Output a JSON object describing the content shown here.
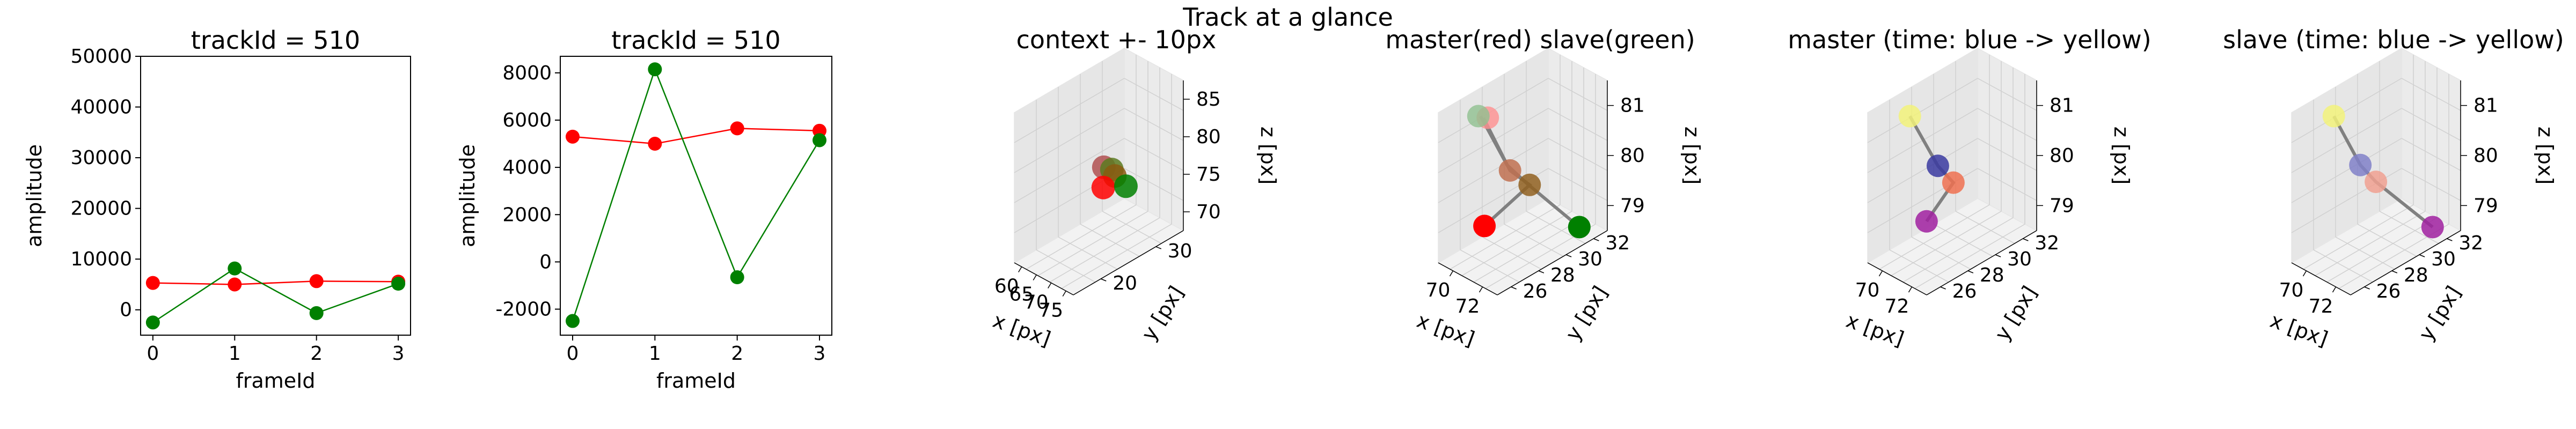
{
  "suptitle": "Track at a glance",
  "colors": {
    "master": "#ff0000",
    "slave": "#008000",
    "link": "#808080",
    "time_start": "#440154",
    "time_end": "#fde725"
  },
  "chart_data": [
    {
      "type": "line",
      "title": "trackId = 510",
      "xlabel": "frameId",
      "ylabel": "amplitude",
      "xlim": [
        -0.15,
        3.15
      ],
      "ylim": [
        -5000,
        50000
      ],
      "xticks": [
        0,
        1,
        2,
        3
      ],
      "yticks": [
        0,
        10000,
        20000,
        30000,
        40000,
        50000
      ],
      "series": [
        {
          "color": "#ff0000",
          "x": [
            0,
            1,
            2,
            3
          ],
          "y": [
            5300,
            5000,
            5650,
            5550
          ]
        },
        {
          "color": "#008000",
          "x": [
            0,
            1,
            2,
            3
          ],
          "y": [
            -2500,
            8150,
            -650,
            5150
          ]
        }
      ]
    },
    {
      "type": "line",
      "title": "trackId = 510",
      "xlabel": "frameId",
      "ylabel": "amplitude",
      "xlim": [
        -0.15,
        3.15
      ],
      "ylim": [
        -3100,
        8700
      ],
      "xticks": [
        0,
        1,
        2,
        3
      ],
      "yticks": [
        -2000,
        0,
        2000,
        4000,
        6000,
        8000
      ],
      "series": [
        {
          "color": "#ff0000",
          "x": [
            0,
            1,
            2,
            3
          ],
          "y": [
            5300,
            5000,
            5650,
            5550
          ]
        },
        {
          "color": "#008000",
          "x": [
            0,
            1,
            2,
            3
          ],
          "y": [
            -2500,
            8150,
            -650,
            5150
          ]
        }
      ]
    },
    {
      "type": "scatter",
      "title": "context +- 10px",
      "xlabel": "x [px]",
      "ylabel": "y [px]",
      "zlabel": "z [px]",
      "xticks": [
        "60",
        "65",
        "70",
        "75"
      ],
      "yticks": [
        "20",
        "30"
      ],
      "zticks": [
        "70",
        "75",
        "80",
        "85"
      ],
      "points": [
        {
          "x": 70.5,
          "y": 26.0,
          "z": 79.3,
          "color": "#b05050"
        },
        {
          "x": 70.8,
          "y": 27.5,
          "z": 78.5,
          "color": "#5a7a20"
        },
        {
          "x": 71.0,
          "y": 28.0,
          "z": 77.5,
          "color": "#8a5a10"
        },
        {
          "x": 69.5,
          "y": 26.5,
          "z": 76.2,
          "color": "#ff0000"
        },
        {
          "x": 71.5,
          "y": 30.0,
          "z": 75.5,
          "color": "#008000"
        }
      ]
    },
    {
      "type": "scatter",
      "title": "master(red) slave(green)",
      "xlabel": "x [px]",
      "ylabel": "y [px]",
      "zlabel": "z [px]",
      "xticks": [
        "70",
        "72"
      ],
      "yticks": [
        "26",
        "28",
        "30",
        "32"
      ],
      "zticks": [
        "79",
        "80",
        "81"
      ],
      "points": [
        {
          "label": "master",
          "color": "#ff0000",
          "frames": [
            [
              70.2,
              27.0,
              81.3
            ],
            [
              70.6,
              28.5,
              79.7
            ],
            [
              71.0,
              29.5,
              79.2
            ],
            [
              69.8,
              27.5,
              78.3
            ]
          ]
        },
        {
          "label": "slave",
          "color": "#008000",
          "frames": [
            [
              70.0,
              27.0,
              81.3
            ],
            [
              70.4,
              28.5,
              79.8
            ],
            [
              70.8,
              29.5,
              79.2
            ],
            [
              72.5,
              31.5,
              78.0
            ]
          ]
        }
      ]
    },
    {
      "type": "scatter",
      "title": "master (time: blue -> yellow)",
      "xlabel": "x [px]",
      "ylabel": "y [px]",
      "zlabel": "z [px]",
      "xticks": [
        "70",
        "72"
      ],
      "yticks": [
        "26",
        "28",
        "30",
        "32"
      ],
      "zticks": [
        "79",
        "80",
        "81"
      ],
      "points": [
        {
          "x": 70.0,
          "y": 27.0,
          "z": 81.3,
          "color": "#f2f27a"
        },
        {
          "x": 70.5,
          "y": 28.5,
          "z": 79.8,
          "color": "#3a3aa0"
        },
        {
          "x": 70.9,
          "y": 29.2,
          "z": 79.3,
          "color": "#ee7050"
        },
        {
          "x": 70.2,
          "y": 28.0,
          "z": 78.4,
          "color": "#a020a0"
        }
      ]
    },
    {
      "type": "scatter",
      "title": "slave (time: blue -> yellow)",
      "xlabel": "x [px]",
      "ylabel": "y [px]",
      "zlabel": "z [px]",
      "xticks": [
        "70",
        "72"
      ],
      "yticks": [
        "26",
        "28",
        "30",
        "32"
      ],
      "zticks": [
        "79",
        "80",
        "81"
      ],
      "points": [
        {
          "x": 70.0,
          "y": 27.0,
          "z": 81.3,
          "color": "#f2f27a"
        },
        {
          "x": 70.4,
          "y": 28.5,
          "z": 79.8,
          "color": "#8080c8"
        },
        {
          "x": 70.8,
          "y": 29.2,
          "z": 79.3,
          "color": "#f0a090"
        },
        {
          "x": 72.5,
          "y": 31.5,
          "z": 78.0,
          "color": "#a020a0"
        }
      ]
    }
  ]
}
